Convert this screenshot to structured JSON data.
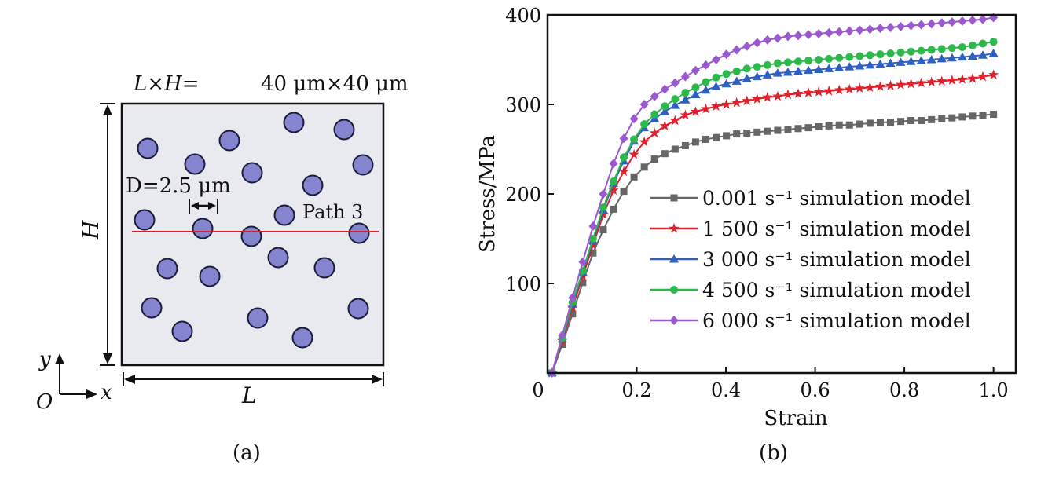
{
  "panel_a": {
    "label": "(a)",
    "dimension_prefix": "L×H=",
    "dimension_value": "40 μm×40 μm",
    "height_label": "H",
    "width_label": "L",
    "diameter_label": "D=2.5 μm",
    "path_label": "Path 3",
    "axis_y": "y",
    "axis_x": "x",
    "origin": "O",
    "colors": {
      "particle_fill": "#8484cf",
      "particle_stroke": "#1b1b3a",
      "box_fill": "#e9e9f0",
      "path": "#e01b24"
    }
  },
  "chart_data": {
    "type": "line",
    "panel_label": "(b)",
    "xlabel": "Strain",
    "ylabel": "Stress/MPa",
    "xlim": [
      0,
      1.05
    ],
    "ylim": [
      0,
      400
    ],
    "xticks": [
      "0",
      "0.2",
      "0.4",
      "0.6",
      "0.8",
      "1.0"
    ],
    "yticks": [
      "100",
      "200",
      "300",
      "400"
    ],
    "legend_position": "lower-right",
    "x": [
      0.01,
      0.033,
      0.056,
      0.079,
      0.102,
      0.125,
      0.148,
      0.171,
      0.194,
      0.217,
      0.24,
      0.263,
      0.286,
      0.309,
      0.332,
      0.355,
      0.378,
      0.401,
      0.424,
      0.447,
      0.47,
      0.493,
      0.516,
      0.539,
      0.562,
      0.585,
      0.608,
      0.631,
      0.654,
      0.677,
      0.7,
      0.723,
      0.746,
      0.769,
      0.792,
      0.815,
      0.838,
      0.861,
      0.884,
      0.907,
      0.93,
      0.953,
      0.976,
      1.0
    ],
    "series": [
      {
        "name": "0.001 s⁻¹ simulation model",
        "color": "#666666",
        "marker": "square",
        "values": [
          0,
          32,
          66,
          101,
          134,
          160,
          183,
          203,
          219,
          230,
          239,
          245,
          250,
          254,
          258,
          261,
          263,
          265,
          267,
          268,
          269,
          270,
          271,
          272,
          273,
          274,
          275,
          276,
          277,
          277,
          278,
          279,
          280,
          280,
          281,
          282,
          282,
          283,
          284,
          285,
          286,
          287,
          288,
          289
        ]
      },
      {
        "name": "1 500 s⁻¹ simulation model",
        "color": "#e0202b",
        "marker": "star",
        "values": [
          0,
          36,
          73,
          108,
          143,
          177,
          204,
          225,
          244,
          258,
          268,
          276,
          282,
          288,
          292,
          295,
          298,
          300,
          302,
          304,
          306,
          308,
          309,
          311,
          312,
          313,
          314,
          315,
          316,
          317,
          318,
          319,
          320,
          321,
          322,
          323,
          324,
          325,
          326,
          327,
          328,
          329,
          331,
          333
        ]
      },
      {
        "name": "3 000 s⁻¹ simulation model",
        "color": "#2e5fc2",
        "marker": "triangle",
        "values": [
          0,
          38,
          77,
          112,
          148,
          182,
          212,
          237,
          259,
          274,
          284,
          292,
          299,
          305,
          311,
          316,
          320,
          323,
          326,
          329,
          331,
          333,
          335,
          336,
          337,
          338,
          339,
          340,
          341,
          342,
          343,
          344,
          345,
          346,
          347,
          348,
          349,
          350,
          351,
          352,
          353,
          354,
          355,
          357
        ]
      },
      {
        "name": "4 500 s⁻¹ simulation model",
        "color": "#2db84b",
        "marker": "circle",
        "values": [
          0,
          39,
          79,
          114,
          150,
          185,
          214,
          241,
          261,
          278,
          289,
          298,
          306,
          313,
          319,
          325,
          330,
          334,
          337,
          340,
          342,
          344,
          346,
          347,
          348,
          349,
          350,
          351,
          352,
          353,
          354,
          355,
          356,
          357,
          358,
          359,
          360,
          361,
          362,
          363,
          364,
          366,
          368,
          370
        ]
      },
      {
        "name": "6 000 s⁻¹ simulation model",
        "color": "#9b59d0",
        "marker": "diamond",
        "values": [
          0,
          42,
          84,
          124,
          164,
          200,
          234,
          262,
          284,
          300,
          309,
          317,
          324,
          331,
          338,
          344,
          350,
          356,
          361,
          365,
          369,
          372,
          374,
          376,
          377,
          378,
          379,
          380,
          381,
          382,
          383,
          384,
          385,
          386,
          387,
          388,
          389,
          390,
          391,
          392,
          393,
          394,
          395,
          397
        ]
      }
    ]
  }
}
